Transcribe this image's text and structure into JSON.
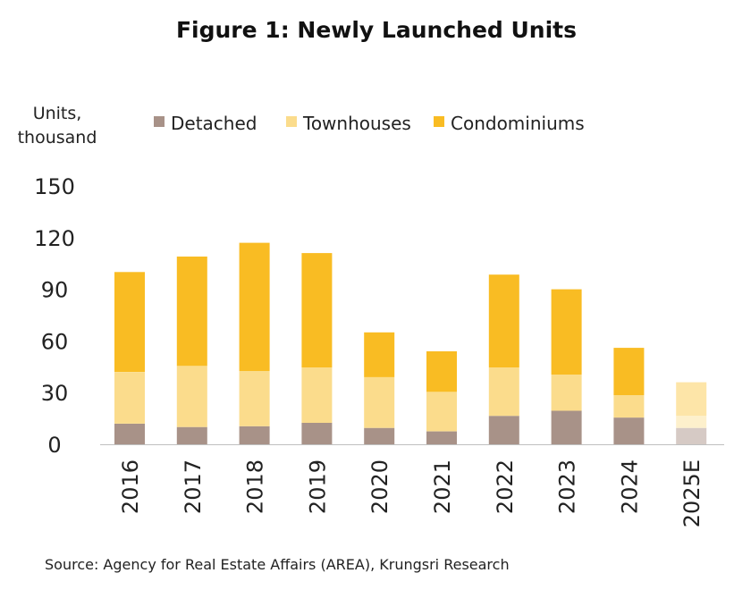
{
  "chart_data": {
    "type": "bar",
    "stacked": true,
    "title": "Figure 1: Newly Launched Units",
    "ylabel": "Units, thousand",
    "ylabel_lines": [
      "Units,",
      "thousand"
    ],
    "xlabel": "",
    "ylim": [
      0,
      150
    ],
    "yticks": [
      0,
      30,
      60,
      90,
      120,
      150
    ],
    "categories": [
      "2016",
      "2017",
      "2018",
      "2019",
      "2020",
      "2021",
      "2022",
      "2023",
      "2024",
      "2025E"
    ],
    "estimate_categories": [
      "2025E"
    ],
    "legend_position": "top",
    "series": [
      {
        "name": "Detached",
        "color": "#a89288",
        "estimate_color": "#d6cac5",
        "values": [
          12,
          10,
          10.5,
          12.5,
          9.5,
          7.5,
          16.5,
          19.5,
          15.5,
          9.5
        ]
      },
      {
        "name": "Townhouses",
        "color": "#fbdc8c",
        "estimate_color": "#fdf0cc",
        "values": [
          30,
          35.5,
          32,
          32,
          29.5,
          23,
          28,
          21,
          13,
          7
        ]
      },
      {
        "name": "Condominiums",
        "color": "#f9bc23",
        "estimate_color": "#fde5a8",
        "values": [
          58,
          63.5,
          74.5,
          66.5,
          26,
          23.5,
          54,
          49.5,
          27.5,
          19.5
        ]
      }
    ],
    "source": "Source: Agency for Real Estate Affairs (AREA), Krungsri Research"
  }
}
